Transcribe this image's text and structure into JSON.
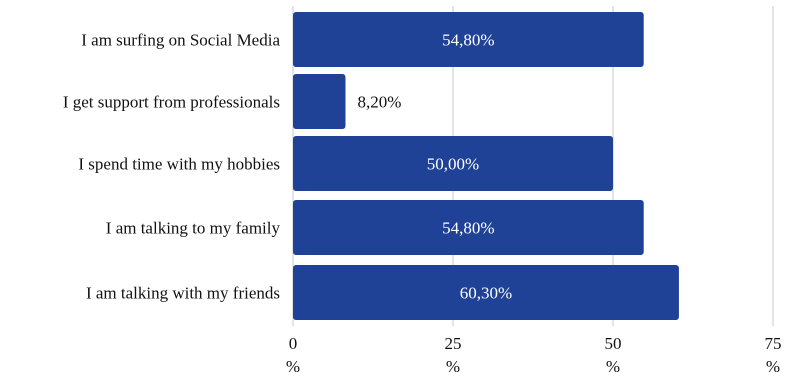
{
  "chart_data": {
    "type": "bar",
    "orientation": "horizontal",
    "title": "",
    "xlabel": "",
    "ylabel": "",
    "categories": [
      "I am surfing on Social Media",
      "I get support from professionals",
      "I spend time with my hobbies",
      "I am talking to my family",
      "I am talking with my friends"
    ],
    "values": [
      54.8,
      8.2,
      50.0,
      54.8,
      60.3
    ],
    "value_labels": [
      "54,80%",
      "8,20%",
      "50,00%",
      "54,80%",
      "60,30%"
    ],
    "xlim": [
      0,
      75
    ],
    "xticks": [
      0,
      25,
      50,
      75
    ],
    "xtick_labels": [
      "0",
      "25",
      "50",
      "75"
    ],
    "xtick_unit": "%",
    "grid": "vertical",
    "legend": "none",
    "colors": {
      "bar": "#1f4196",
      "label_inside": "#ffffff",
      "label_outside": "#111111",
      "grid": "#c8c8c8"
    }
  }
}
